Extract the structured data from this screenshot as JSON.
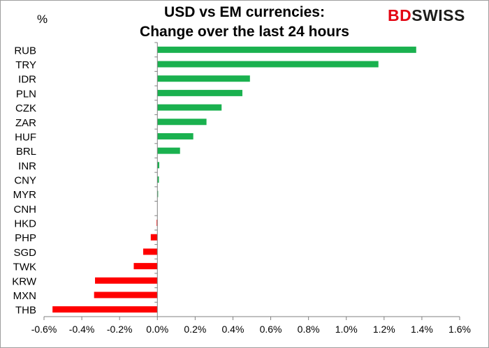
{
  "chart_title_line1": "USD vs EM currencies:",
  "chart_title_line2": "Change over the last 24 hours",
  "unit_label": "%",
  "logo": {
    "part1": "BD",
    "part2": "SWISS"
  },
  "colors": {
    "positive": "#1ab14f",
    "negative": "#ff0000",
    "axis": "#808080"
  },
  "chart_data": {
    "type": "bar",
    "orientation": "horizontal",
    "categories": [
      "RUB",
      "TRY",
      "IDR",
      "PLN",
      "CZK",
      "ZAR",
      "HUF",
      "BRL",
      "INR",
      "CNY",
      "MYR",
      "CNH",
      "HKD",
      "PHP",
      "SGD",
      "TWK",
      "KRW",
      "MXN",
      "THB"
    ],
    "values": [
      1.37,
      1.17,
      0.49,
      0.45,
      0.34,
      0.26,
      0.19,
      0.12,
      0.01,
      0.008,
      0.004,
      0.0,
      -0.004,
      -0.035,
      -0.075,
      -0.125,
      -0.33,
      -0.335,
      -0.555
    ],
    "xlim": [
      -0.6,
      1.6
    ],
    "xticks": [
      "-0.6%",
      "-0.4%",
      "-0.2%",
      "0.0%",
      "0.2%",
      "0.4%",
      "0.6%",
      "0.8%",
      "1.0%",
      "1.2%",
      "1.4%",
      "1.6%"
    ],
    "tick_values": [
      -0.6,
      -0.4,
      -0.2,
      0.0,
      0.2,
      0.4,
      0.6,
      0.8,
      1.0,
      1.2,
      1.4,
      1.6
    ],
    "grid": false,
    "legend": "none"
  }
}
